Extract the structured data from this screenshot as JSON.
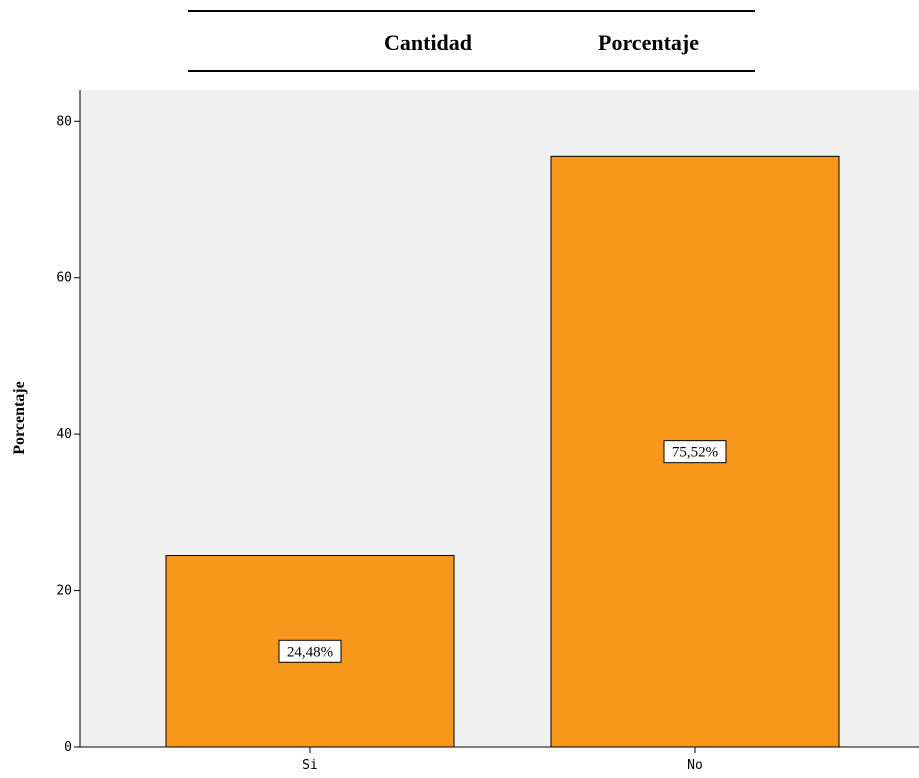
{
  "table_header": {
    "columns": [
      "Cantidad",
      "Porcentaje"
    ]
  },
  "colors": {
    "bar_fill": "#F7981D",
    "plot_background": "#F0F0F0"
  },
  "chart_data": {
    "type": "bar",
    "categories": [
      "Si",
      "No"
    ],
    "values": [
      24.48,
      75.52
    ],
    "data_labels": [
      "24,48%",
      "75,52%"
    ],
    "title": "",
    "xlabel": "",
    "ylabel": "Porcentaje",
    "ylim": [
      0,
      84
    ],
    "yticks": [
      0,
      20,
      40,
      60,
      80
    ],
    "grid": false,
    "legend": "none"
  }
}
